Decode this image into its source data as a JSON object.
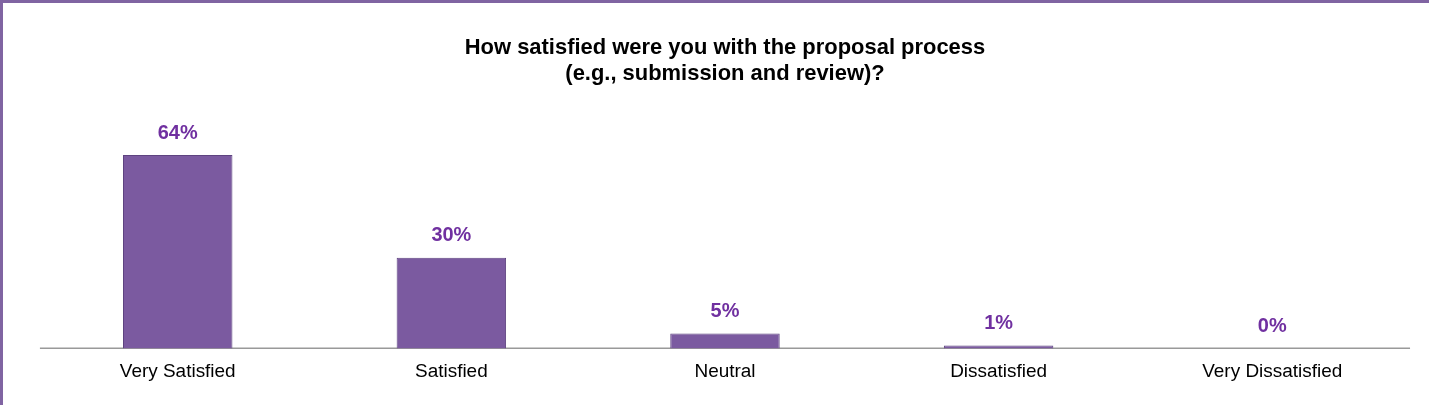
{
  "chart_data": {
    "type": "bar",
    "title": "How satisfied were you with the proposal process\n(e.g., submission and review)?",
    "categories": [
      "Very Satisfied",
      "Satisfied",
      "Neutral",
      "Dissatisfied",
      "Very Dissatisfied"
    ],
    "values": [
      64,
      30,
      5,
      1,
      0
    ],
    "value_labels": [
      "64%",
      "30%",
      "5%",
      "1%",
      "0%"
    ],
    "color": "#7b5aa0",
    "legend": false,
    "grid": false
  }
}
